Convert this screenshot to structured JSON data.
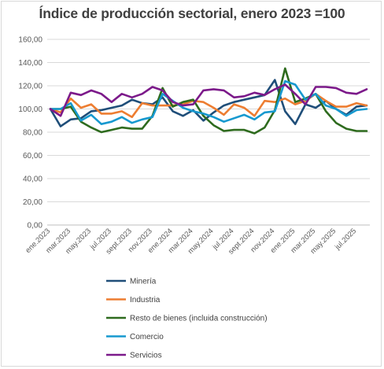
{
  "chart_data": {
    "type": "line",
    "title": "Índice de producción sectorial, enero 2023 =100",
    "xlabel": "",
    "ylabel": "",
    "ylim": [
      0,
      160
    ],
    "yticks": [
      "0,00",
      "20,00",
      "40,00",
      "60,00",
      "80,00",
      "100,00",
      "120,00",
      "140,00",
      "160,00"
    ],
    "ytick_values": [
      0,
      20,
      40,
      60,
      80,
      100,
      120,
      140,
      160
    ],
    "xtick_labels": [
      "ene.2023",
      "mar.2023",
      "may.2023",
      "jul.2023",
      "sept.2023",
      "nov.2023",
      "ene.2024",
      "mar.2024",
      "may.2024",
      "jul.2024",
      "sept.2024",
      "nov.2024",
      "ene.2025",
      "mar.2025",
      "may.2025",
      "jul.2025"
    ],
    "x": [
      "ene.2023",
      "feb.2023",
      "mar.2023",
      "abr.2023",
      "may.2023",
      "jun.2023",
      "jul.2023",
      "ago.2023",
      "sept.2023",
      "oct.2023",
      "nov.2023",
      "dic.2023",
      "ene.2024",
      "feb.2024",
      "mar.2024",
      "abr.2024",
      "may.2024",
      "jun.2024",
      "jul.2024",
      "ago.2024",
      "sept.2024",
      "oct.2024",
      "nov.2024",
      "dic.2024",
      "ene.2025",
      "feb.2025",
      "mar.2025",
      "abr.2025",
      "may.2025",
      "jun.2025",
      "jul.2025",
      "ago.2025"
    ],
    "grid": true,
    "legend_position": "bottom",
    "series": [
      {
        "name": "Minería",
        "color": "#1f4e79",
        "values": [
          100,
          85,
          91,
          92,
          98,
          99,
          101,
          103,
          108,
          105,
          104,
          110,
          98,
          94,
          99,
          90,
          97,
          103,
          106,
          108,
          110,
          112,
          125,
          98,
          87,
          104,
          101,
          107,
          100,
          95,
          102,
          103
        ]
      },
      {
        "name": "Industria",
        "color": "#ed7d31",
        "values": [
          100,
          97,
          109,
          101,
          104,
          96,
          96,
          98,
          93,
          105,
          103,
          103,
          103,
          104,
          107,
          106,
          101,
          95,
          104,
          101,
          94,
          107,
          106,
          109,
          104,
          107,
          113,
          107,
          102,
          102,
          105,
          103
        ]
      },
      {
        "name": "Resto de bienes (incluida construcción)",
        "color": "#2e6b1e",
        "values": [
          100,
          100,
          102,
          89,
          84,
          80,
          82,
          84,
          83,
          83,
          94,
          118,
          102,
          106,
          108,
          94,
          86,
          81,
          82,
          82,
          79,
          84,
          99,
          135,
          106,
          109,
          113,
          98,
          88,
          83,
          81,
          81
        ]
      },
      {
        "name": "Comercio",
        "color": "#1799cf",
        "values": [
          100,
          100,
          105,
          90,
          95,
          87,
          89,
          93,
          88,
          91,
          93,
          113,
          107,
          101,
          98,
          96,
          93,
          89,
          92,
          95,
          91,
          97,
          98,
          124,
          121,
          108,
          113,
          103,
          100,
          94,
          99,
          100
        ]
      },
      {
        "name": "Servicios",
        "color": "#7c1a8a",
        "values": [
          100,
          94,
          114,
          112,
          116,
          113,
          106,
          113,
          110,
          113,
          119,
          116,
          106,
          103,
          104,
          116,
          117,
          116,
          110,
          111,
          114,
          112,
          117,
          121,
          113,
          104,
          119,
          119,
          118,
          114,
          113,
          117
        ]
      }
    ]
  }
}
